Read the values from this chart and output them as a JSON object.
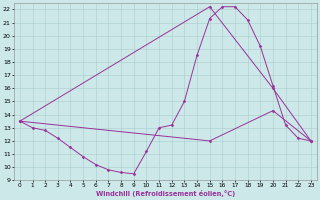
{
  "xlabel": "Windchill (Refroidissement éolien,°C)",
  "xlim": [
    -0.5,
    23.5
  ],
  "ylim": [
    9,
    22.5
  ],
  "yticks": [
    9,
    10,
    11,
    12,
    13,
    14,
    15,
    16,
    17,
    18,
    19,
    20,
    21,
    22
  ],
  "xticks": [
    0,
    1,
    2,
    3,
    4,
    5,
    6,
    7,
    8,
    9,
    10,
    11,
    12,
    13,
    14,
    15,
    16,
    17,
    18,
    19,
    20,
    21,
    22,
    23
  ],
  "background_color": "#cce8e8",
  "line_color": "#993399",
  "grid_color": "#aacccc",
  "line1_x": [
    0,
    1,
    2,
    3,
    4,
    5,
    6,
    7,
    8,
    9,
    10,
    11,
    12,
    13,
    14,
    15,
    16,
    17,
    18,
    19,
    20,
    21,
    22,
    23
  ],
  "line1_y": [
    13.5,
    13.0,
    12.8,
    12.2,
    11.5,
    10.8,
    10.2,
    9.8,
    9.6,
    9.5,
    11.2,
    13.0,
    13.2,
    15.0,
    18.5,
    21.3,
    22.2,
    22.2,
    21.2,
    19.2,
    16.2,
    13.2,
    12.2,
    12.0
  ],
  "line2_x": [
    0,
    15,
    20,
    23
  ],
  "line2_y": [
    13.5,
    22.2,
    16.0,
    12.0
  ],
  "line3_x": [
    0,
    15,
    20,
    23
  ],
  "line3_y": [
    13.5,
    12.0,
    14.3,
    12.0
  ]
}
